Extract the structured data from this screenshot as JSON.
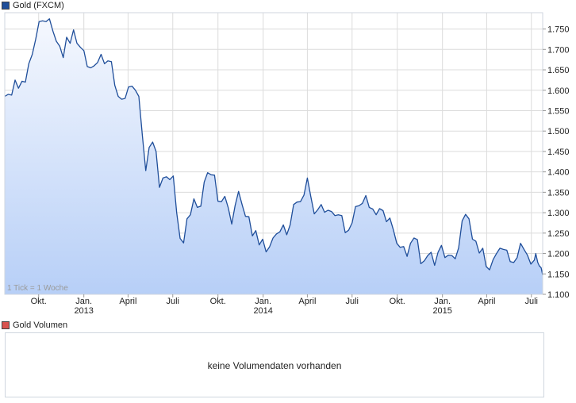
{
  "price_legend": {
    "label": "Gold (FXCM)",
    "color": "#1f4e9a"
  },
  "volume_legend": {
    "label": "Gold Volumen",
    "color": "#d9534f"
  },
  "volume_message": "keine Volumendaten vorhanden",
  "tick_note": "1 Tick = 1 Woche",
  "chart_data": {
    "type": "area",
    "title": "Gold (FXCM)",
    "xlabel": "",
    "ylabel": "",
    "ylim": [
      1100,
      1790
    ],
    "y_ticks": [
      1100,
      1150,
      1200,
      1250,
      1300,
      1350,
      1400,
      1450,
      1500,
      1550,
      1600,
      1650,
      1700,
      1750
    ],
    "y_tick_labels": [
      "1.100",
      "1.150",
      "1.200",
      "1.250",
      "1.300",
      "1.350",
      "1.400",
      "1.450",
      "1.500",
      "1.550",
      "1.600",
      "1.650",
      "1.700",
      "1.750"
    ],
    "x_range": [
      "2012-07-24",
      "2015-07-24"
    ],
    "x_ticks": [
      {
        "date": "2012-10-01",
        "label": "Okt."
      },
      {
        "date": "2013-01-01",
        "label": "Jan."
      },
      {
        "date": "2013-04-01",
        "label": "April"
      },
      {
        "date": "2013-07-01",
        "label": "Juli"
      },
      {
        "date": "2013-10-01",
        "label": "Okt."
      },
      {
        "date": "2014-01-01",
        "label": "Jan."
      },
      {
        "date": "2014-04-01",
        "label": "April"
      },
      {
        "date": "2014-07-01",
        "label": "Juli"
      },
      {
        "date": "2014-10-01",
        "label": "Okt."
      },
      {
        "date": "2015-01-01",
        "label": "Jan."
      },
      {
        "date": "2015-04-01",
        "label": "April"
      },
      {
        "date": "2015-07-01",
        "label": "Juli"
      }
    ],
    "year_labels": [
      {
        "date": "2013-01-01",
        "label": "2013"
      },
      {
        "date": "2014-01-01",
        "label": "2014"
      },
      {
        "date": "2015-01-01",
        "label": "2015"
      }
    ],
    "grid": true,
    "colors": {
      "line": "#1f4e9a",
      "fill_top": "#f5f8fe",
      "fill_bottom": "#b7cff7",
      "grid": "#dcdcdc"
    },
    "series": [
      {
        "values": [
          [
            "2012-07-24",
            1585
          ],
          [
            "2012-07-31",
            1590
          ],
          [
            "2012-08-07",
            1588
          ],
          [
            "2012-08-14",
            1625
          ],
          [
            "2012-08-21",
            1605
          ],
          [
            "2012-08-28",
            1622
          ],
          [
            "2012-09-04",
            1620
          ],
          [
            "2012-09-11",
            1665
          ],
          [
            "2012-09-18",
            1688
          ],
          [
            "2012-09-25",
            1725
          ],
          [
            "2012-10-02",
            1768
          ],
          [
            "2012-10-09",
            1770
          ],
          [
            "2012-10-16",
            1768
          ],
          [
            "2012-10-23",
            1775
          ],
          [
            "2012-10-30",
            1745
          ],
          [
            "2012-11-06",
            1720
          ],
          [
            "2012-11-13",
            1708
          ],
          [
            "2012-11-20",
            1680
          ],
          [
            "2012-11-27",
            1730
          ],
          [
            "2012-12-04",
            1715
          ],
          [
            "2012-12-11",
            1748
          ],
          [
            "2012-12-18",
            1715
          ],
          [
            "2012-12-25",
            1705
          ],
          [
            "2013-01-01",
            1697
          ],
          [
            "2013-01-08",
            1658
          ],
          [
            "2013-01-15",
            1655
          ],
          [
            "2013-01-22",
            1660
          ],
          [
            "2013-01-29",
            1668
          ],
          [
            "2013-02-05",
            1688
          ],
          [
            "2013-02-12",
            1665
          ],
          [
            "2013-02-19",
            1672
          ],
          [
            "2013-02-26",
            1670
          ],
          [
            "2013-03-05",
            1612
          ],
          [
            "2013-03-12",
            1585
          ],
          [
            "2013-03-19",
            1578
          ],
          [
            "2013-03-26",
            1580
          ],
          [
            "2013-04-02",
            1608
          ],
          [
            "2013-04-09",
            1610
          ],
          [
            "2013-04-16",
            1600
          ],
          [
            "2013-04-23",
            1585
          ],
          [
            "2013-04-30",
            1490
          ],
          [
            "2013-05-07",
            1403
          ],
          [
            "2013-05-14",
            1460
          ],
          [
            "2013-05-21",
            1473
          ],
          [
            "2013-05-28",
            1450
          ],
          [
            "2013-06-04",
            1362
          ],
          [
            "2013-06-11",
            1385
          ],
          [
            "2013-06-18",
            1388
          ],
          [
            "2013-06-25",
            1381
          ],
          [
            "2013-07-02",
            1390
          ],
          [
            "2013-07-09",
            1300
          ],
          [
            "2013-07-16",
            1237
          ],
          [
            "2013-07-23",
            1226
          ],
          [
            "2013-07-30",
            1285
          ],
          [
            "2013-08-06",
            1295
          ],
          [
            "2013-08-13",
            1334
          ],
          [
            "2013-08-20",
            1313
          ],
          [
            "2013-08-27",
            1316
          ],
          [
            "2013-09-03",
            1375
          ],
          [
            "2013-09-10",
            1398
          ],
          [
            "2013-09-17",
            1393
          ],
          [
            "2013-09-24",
            1392
          ],
          [
            "2013-10-01",
            1328
          ],
          [
            "2013-10-08",
            1327
          ],
          [
            "2013-10-15",
            1340
          ],
          [
            "2013-10-22",
            1312
          ],
          [
            "2013-10-29",
            1272
          ],
          [
            "2013-11-05",
            1318
          ],
          [
            "2013-11-12",
            1352
          ],
          [
            "2013-11-19",
            1320
          ],
          [
            "2013-11-26",
            1291
          ],
          [
            "2013-12-03",
            1290
          ],
          [
            "2013-12-10",
            1243
          ],
          [
            "2013-12-17",
            1256
          ],
          [
            "2013-12-24",
            1221
          ],
          [
            "2013-12-31",
            1235
          ],
          [
            "2014-01-07",
            1204
          ],
          [
            "2014-01-14",
            1216
          ],
          [
            "2014-01-21",
            1238
          ],
          [
            "2014-01-28",
            1248
          ],
          [
            "2014-02-04",
            1253
          ],
          [
            "2014-02-11",
            1270
          ],
          [
            "2014-02-18",
            1246
          ],
          [
            "2014-02-25",
            1270
          ],
          [
            "2014-03-04",
            1320
          ],
          [
            "2014-03-11",
            1326
          ],
          [
            "2014-03-18",
            1327
          ],
          [
            "2014-03-25",
            1343
          ],
          [
            "2014-04-01",
            1385
          ],
          [
            "2014-04-08",
            1340
          ],
          [
            "2014-04-15",
            1297
          ],
          [
            "2014-04-22",
            1307
          ],
          [
            "2014-04-29",
            1320
          ],
          [
            "2014-05-06",
            1301
          ],
          [
            "2014-05-13",
            1306
          ],
          [
            "2014-05-20",
            1303
          ],
          [
            "2014-05-27",
            1293
          ],
          [
            "2014-06-03",
            1295
          ],
          [
            "2014-06-10",
            1293
          ],
          [
            "2014-06-17",
            1251
          ],
          [
            "2014-06-24",
            1257
          ],
          [
            "2014-07-01",
            1275
          ],
          [
            "2014-07-08",
            1315
          ],
          [
            "2014-07-15",
            1317
          ],
          [
            "2014-07-22",
            1323
          ],
          [
            "2014-07-29",
            1342
          ],
          [
            "2014-08-05",
            1313
          ],
          [
            "2014-08-12",
            1309
          ],
          [
            "2014-08-19",
            1295
          ],
          [
            "2014-08-26",
            1310
          ],
          [
            "2014-09-02",
            1305
          ],
          [
            "2014-09-09",
            1278
          ],
          [
            "2014-09-16",
            1287
          ],
          [
            "2014-09-23",
            1258
          ],
          [
            "2014-09-30",
            1225
          ],
          [
            "2014-10-07",
            1215
          ],
          [
            "2014-10-14",
            1217
          ],
          [
            "2014-10-21",
            1193
          ],
          [
            "2014-10-28",
            1225
          ],
          [
            "2014-11-04",
            1238
          ],
          [
            "2014-11-11",
            1234
          ],
          [
            "2014-11-18",
            1175
          ],
          [
            "2014-11-25",
            1182
          ],
          [
            "2014-12-02",
            1195
          ],
          [
            "2014-12-09",
            1203
          ],
          [
            "2014-12-16",
            1171
          ],
          [
            "2014-12-23",
            1203
          ],
          [
            "2014-12-30",
            1220
          ],
          [
            "2015-01-06",
            1190
          ],
          [
            "2015-01-13",
            1196
          ],
          [
            "2015-01-20",
            1195
          ],
          [
            "2015-01-27",
            1187
          ],
          [
            "2015-02-03",
            1214
          ],
          [
            "2015-02-10",
            1280
          ],
          [
            "2015-02-17",
            1296
          ],
          [
            "2015-02-24",
            1285
          ],
          [
            "2015-03-03",
            1235
          ],
          [
            "2015-03-10",
            1230
          ],
          [
            "2015-03-17",
            1201
          ],
          [
            "2015-03-24",
            1213
          ],
          [
            "2015-03-31",
            1168
          ],
          [
            "2015-04-07",
            1160
          ],
          [
            "2015-04-14",
            1185
          ],
          [
            "2015-04-21",
            1200
          ],
          [
            "2015-04-28",
            1213
          ],
          [
            "2015-05-05",
            1210
          ],
          [
            "2015-05-12",
            1208
          ],
          [
            "2015-05-19",
            1180
          ],
          [
            "2015-05-26",
            1178
          ],
          [
            "2015-06-02",
            1190
          ],
          [
            "2015-06-09",
            1225
          ],
          [
            "2015-06-16",
            1210
          ],
          [
            "2015-06-23",
            1196
          ],
          [
            "2015-06-30",
            1174
          ],
          [
            "2015-07-07",
            1184
          ],
          [
            "2015-07-10",
            1200
          ],
          [
            "2015-07-14",
            1178
          ],
          [
            "2015-07-17",
            1170
          ],
          [
            "2015-07-21",
            1165
          ],
          [
            "2015-07-24",
            1147
          ]
        ]
      }
    ]
  }
}
